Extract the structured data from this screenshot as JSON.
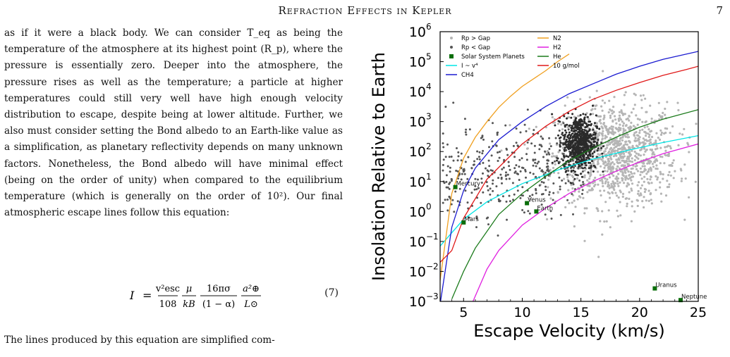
{
  "header": {
    "running_title": "Refraction Effects in Kepler",
    "page_number": "7"
  },
  "body": {
    "paragraph": "as if it were a black body. We can consider T_eq as being the temperature of the atmosphere at its highest point (R_p), where the pressure is essentially zero. Deeper into the atmosphere, the pressure rises as well as the temperature; a particle at higher temperatures could still very well have high enough velocity distribution to escape, despite being at lower altitude. Further, we also must consider setting the Bond albedo to an Earth-like value as a simplification, as planetary reflectivity depends on many unknown factors. Nonetheless, the Bond albedo will have minimal effect (being on the order of unity) when compared to the equilibrium temperature (which is generally on the order of 10²). Our final atmospheric escape lines follow this equation:",
    "equation": {
      "lhs": "I",
      "equals": "=",
      "frac1_num": "v²esc",
      "frac1_den": "108",
      "frac2_num": "μ",
      "frac2_den": "kB",
      "frac3_num": "16πσ",
      "frac3_den": "(1 − α)",
      "frac4_num": "a²⊕",
      "frac4_den": "L⊙",
      "number": "(7)"
    },
    "tail": "The lines produced by this equation are simplified com-"
  },
  "chart_data": {
    "type": "scatter",
    "xlabel": "Escape Velocity (km/s)",
    "ylabel": "Insolation Relative to Earth",
    "xlim": [
      3,
      25
    ],
    "ylim": [
      0.001,
      1000000
    ],
    "yscale": "log",
    "x_ticks": [
      5,
      10,
      15,
      20,
      25
    ],
    "y_ticks": [
      {
        "base": "10",
        "exp": "−3",
        "value": 0.001
      },
      {
        "base": "10",
        "exp": "−2",
        "value": 0.01
      },
      {
        "base": "10",
        "exp": "−1",
        "value": 0.1
      },
      {
        "base": "10",
        "exp": "0",
        "value": 1
      },
      {
        "base": "10",
        "exp": "1",
        "value": 10
      },
      {
        "base": "10",
        "exp": "2",
        "value": 100
      },
      {
        "base": "10",
        "exp": "3",
        "value": 1000
      },
      {
        "base": "10",
        "exp": "4",
        "value": 10000
      },
      {
        "base": "10",
        "exp": "5",
        "value": 100000
      },
      {
        "base": "10",
        "exp": "6",
        "value": 1000000
      }
    ],
    "grid": false,
    "legend_position": "top-left",
    "legend": [
      {
        "label": "Rp > Gap",
        "kind": "dot",
        "color": "#b5b5b5"
      },
      {
        "label": "Rp < Gap",
        "kind": "dot",
        "color": "#555555"
      },
      {
        "label": "Solar System Planets",
        "kind": "square",
        "color": "#0a6e0a"
      },
      {
        "label": "I ~ v⁴",
        "kind": "line",
        "color": "#00e5e5"
      },
      {
        "label": "CH4",
        "kind": "line",
        "color": "#1a1ad0"
      },
      {
        "label": "N2",
        "kind": "line",
        "color": "#f0a020"
      },
      {
        "label": "H2",
        "kind": "line",
        "color": "#e020e0"
      },
      {
        "label": "He",
        "kind": "line",
        "color": "#1a7a1a"
      },
      {
        "label": "10 g/mol",
        "kind": "line",
        "color": "#e01818"
      }
    ],
    "planets": [
      {
        "name": "Mercury",
        "x": 4.3,
        "y": 6.5
      },
      {
        "name": "Venus",
        "x": 10.4,
        "y": 1.9
      },
      {
        "name": "Earth",
        "x": 11.2,
        "y": 1.0
      },
      {
        "name": "Mars",
        "x": 5.0,
        "y": 0.43
      },
      {
        "name": "Uranus",
        "x": 21.3,
        "y": 0.0027
      },
      {
        "name": "Neptune",
        "x": 23.5,
        "y": 0.0011
      }
    ],
    "series": [
      {
        "name": "I ~ v⁴",
        "color": "#00e5e5",
        "x": [
          3,
          5,
          7,
          10,
          13,
          16,
          19,
          22,
          25
        ],
        "y": [
          0.07,
          0.55,
          2.1,
          8.5,
          24,
          56,
          110,
          200,
          340
        ]
      },
      {
        "name": "N2",
        "color": "#f0a020",
        "x": [
          3,
          4,
          5,
          6,
          7,
          8,
          9,
          10,
          12,
          13,
          14
        ],
        "y": [
          0.005,
          4,
          60,
          300,
          1000,
          3000,
          7000,
          15000,
          50000,
          100000,
          180000
        ]
      },
      {
        "name": "CH4",
        "color": "#1a1ad0",
        "x": [
          3,
          4,
          5,
          6,
          8,
          10,
          12,
          14,
          16,
          18,
          20,
          22,
          25
        ],
        "y": [
          0.0008,
          0.3,
          5,
          28,
          250,
          1000,
          3200,
          8500,
          18000,
          38000,
          70000,
          120000,
          220000
        ]
      },
      {
        "name": "10 g/mol",
        "color": "#e01818",
        "x": [
          3,
          4,
          5,
          7,
          10,
          12,
          14,
          16,
          18,
          20,
          22,
          24,
          25
        ],
        "y": [
          0.02,
          0.05,
          0.6,
          12,
          180,
          700,
          2200,
          5500,
          11000,
          20000,
          35000,
          55000,
          70000
        ]
      },
      {
        "name": "He",
        "color": "#1a7a1a",
        "x": [
          4,
          5,
          6,
          8,
          10,
          12,
          14,
          16,
          18,
          20,
          22,
          25
        ],
        "y": [
          0.0012,
          0.01,
          0.06,
          0.8,
          4,
          15,
          50,
          130,
          300,
          650,
          1200,
          2500
        ]
      },
      {
        "name": "H2",
        "color": "#e020e0",
        "x": [
          5.8,
          7,
          8,
          10,
          12,
          14,
          16,
          18,
          20,
          22,
          25
        ],
        "y": [
          0.001,
          0.012,
          0.05,
          0.35,
          1.3,
          4,
          10,
          22,
          45,
          85,
          180
        ]
      }
    ]
  }
}
